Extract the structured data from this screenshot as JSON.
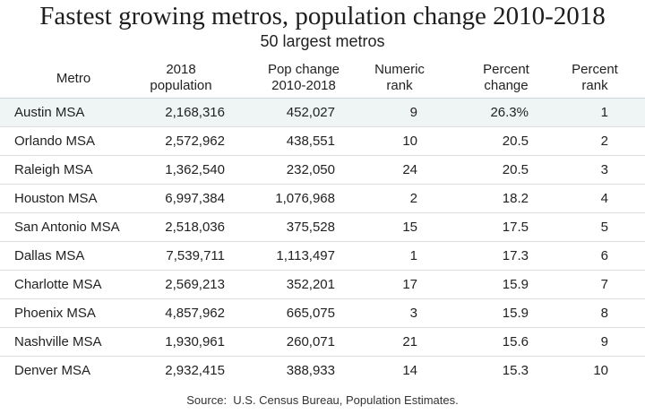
{
  "chart_data": {
    "type": "table",
    "title": "Fastest growing metros, population change 2010-2018",
    "subtitle": "50 largest metros",
    "columns": [
      [
        "Metro"
      ],
      [
        "2018",
        "population"
      ],
      [
        "Pop change",
        "2010-2018"
      ],
      [
        "Numeric",
        "rank"
      ],
      [
        "Percent",
        "change"
      ],
      [
        "Percent",
        "rank"
      ]
    ],
    "rows": [
      [
        "Austin MSA",
        "2,168,316",
        "452,027",
        "9",
        "26.3%",
        "1"
      ],
      [
        "Orlando MSA",
        "2,572,962",
        "438,551",
        "10",
        "20.5",
        "2"
      ],
      [
        "Raleigh MSA",
        "1,362,540",
        "232,050",
        "24",
        "20.5",
        "3"
      ],
      [
        "Houston MSA",
        "6,997,384",
        "1,076,968",
        "2",
        "18.2",
        "4"
      ],
      [
        "San Antonio MSA",
        "2,518,036",
        "375,528",
        "15",
        "17.5",
        "5"
      ],
      [
        "Dallas MSA",
        "7,539,711",
        "1,113,497",
        "1",
        "17.3",
        "6"
      ],
      [
        "Charlotte MSA",
        "2,569,213",
        "352,201",
        "17",
        "15.9",
        "7"
      ],
      [
        "Phoenix MSA",
        "4,857,962",
        "665,075",
        "3",
        "15.9",
        "8"
      ],
      [
        "Nashville MSA",
        "1,930,961",
        "260,071",
        "21",
        "15.6",
        "9"
      ],
      [
        "Denver MSA",
        "2,932,415",
        "388,933",
        "14",
        "15.3",
        "10"
      ]
    ],
    "highlighted_row": "Austin MSA",
    "source": "Source:  U.S. Census Bureau, Population Estimates."
  },
  "colors": {
    "highlight_row": "#eef5f4",
    "row_divider": "#dcdcdc",
    "text": "#222222"
  }
}
